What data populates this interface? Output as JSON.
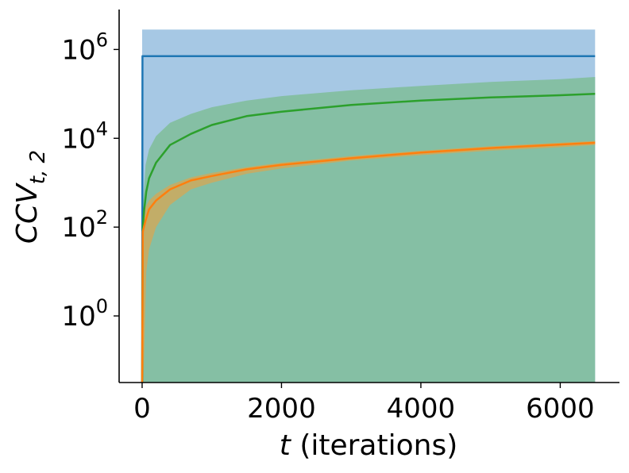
{
  "chart_data": {
    "type": "line",
    "title": "",
    "xlabel_var": "t",
    "xlabel_rest": " (iterations)",
    "ylabel_main": "CCV",
    "ylabel_sub": "t, 2",
    "xlim": [
      -330,
      6850
    ],
    "ylim_log10": [
      -1.5,
      6.9
    ],
    "yscale": "log",
    "grid": false,
    "legend": "none",
    "x_ticks": [
      {
        "value": 0,
        "label": "0"
      },
      {
        "value": 2000,
        "label": "2000"
      },
      {
        "value": 4000,
        "label": "4000"
      },
      {
        "value": 6000,
        "label": "6000"
      }
    ],
    "y_ticks": [
      {
        "log10": 0,
        "base": "10",
        "exp": "0"
      },
      {
        "log10": 2,
        "base": "10",
        "exp": "2"
      },
      {
        "log10": 4,
        "base": "10",
        "exp": "4"
      },
      {
        "log10": 6,
        "base": "10",
        "exp": "6"
      }
    ],
    "series": [
      {
        "color": "#1f77b4",
        "band_color": "#a6c8e4",
        "mean": [
          [
            0,
            -1.5
          ],
          [
            5,
            5.85
          ],
          [
            6500,
            5.85
          ]
        ],
        "band_upper": [
          [
            0,
            6.45
          ],
          [
            6500,
            6.45
          ]
        ],
        "band_lower": [
          [
            0,
            -1.5
          ],
          [
            6500,
            -1.5
          ]
        ]
      },
      {
        "color": "#2ca02c",
        "band_color": "#85bfa4",
        "mean": [
          [
            0,
            -1.5
          ],
          [
            10,
            2.0
          ],
          [
            30,
            2.4
          ],
          [
            60,
            2.8
          ],
          [
            100,
            3.1
          ],
          [
            200,
            3.45
          ],
          [
            400,
            3.85
          ],
          [
            700,
            4.1
          ],
          [
            1000,
            4.3
          ],
          [
            1500,
            4.5
          ],
          [
            2000,
            4.6
          ],
          [
            3000,
            4.75
          ],
          [
            4000,
            4.85
          ],
          [
            5000,
            4.92
          ],
          [
            6000,
            4.97
          ],
          [
            6500,
            5.0
          ]
        ],
        "band_upper": [
          [
            0,
            2.2
          ],
          [
            50,
            3.4
          ],
          [
            100,
            3.75
          ],
          [
            200,
            4.05
          ],
          [
            400,
            4.35
          ],
          [
            700,
            4.55
          ],
          [
            1000,
            4.7
          ],
          [
            1500,
            4.85
          ],
          [
            2000,
            4.95
          ],
          [
            3000,
            5.08
          ],
          [
            4000,
            5.18
          ],
          [
            5000,
            5.27
          ],
          [
            6000,
            5.33
          ],
          [
            6500,
            5.38
          ]
        ],
        "band_lower": [
          [
            0,
            -1.5
          ],
          [
            6500,
            -1.5
          ]
        ]
      },
      {
        "color": "#ff7f0e",
        "band_color": "#c2ad68",
        "mean": [
          [
            0,
            -1.5
          ],
          [
            10,
            1.9
          ],
          [
            50,
            2.15
          ],
          [
            100,
            2.4
          ],
          [
            200,
            2.6
          ],
          [
            400,
            2.85
          ],
          [
            700,
            3.05
          ],
          [
            1000,
            3.15
          ],
          [
            1500,
            3.3
          ],
          [
            2000,
            3.4
          ],
          [
            3000,
            3.55
          ],
          [
            4000,
            3.68
          ],
          [
            5000,
            3.78
          ],
          [
            6000,
            3.86
          ],
          [
            6500,
            3.9
          ]
        ],
        "band_upper": [
          [
            0,
            2.1
          ],
          [
            50,
            2.45
          ],
          [
            100,
            2.6
          ],
          [
            200,
            2.75
          ],
          [
            400,
            2.95
          ],
          [
            700,
            3.12
          ],
          [
            1000,
            3.22
          ],
          [
            1500,
            3.35
          ],
          [
            2000,
            3.45
          ],
          [
            3000,
            3.6
          ],
          [
            4000,
            3.72
          ],
          [
            5000,
            3.82
          ],
          [
            6000,
            3.9
          ],
          [
            6500,
            3.94
          ]
        ],
        "band_lower": [
          [
            20,
            -1.5
          ],
          [
            60,
            1.0
          ],
          [
            100,
            1.5
          ],
          [
            200,
            2.0
          ],
          [
            400,
            2.5
          ],
          [
            700,
            2.85
          ],
          [
            1000,
            3.0
          ],
          [
            1500,
            3.2
          ],
          [
            2000,
            3.32
          ],
          [
            3000,
            3.5
          ],
          [
            4000,
            3.62
          ],
          [
            5000,
            3.72
          ],
          [
            6000,
            3.8
          ],
          [
            6500,
            3.85
          ]
        ]
      }
    ]
  }
}
